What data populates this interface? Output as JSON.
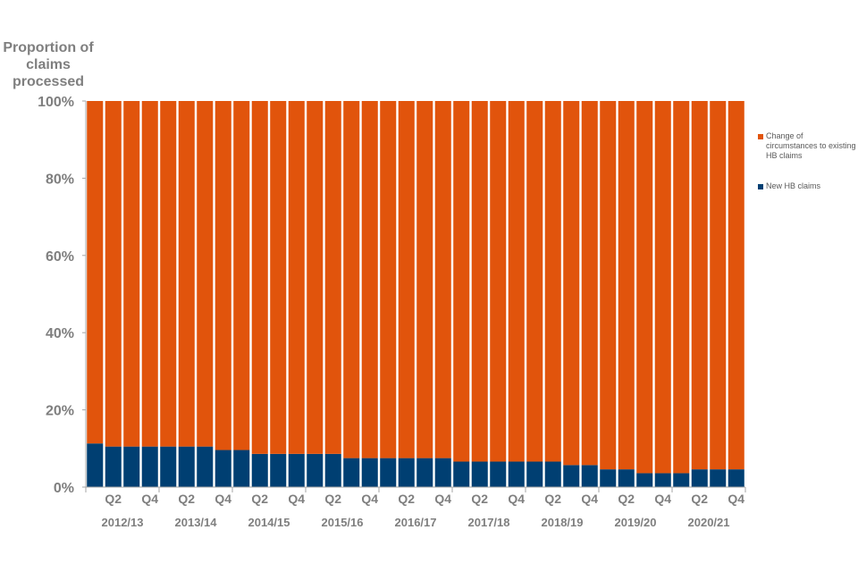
{
  "chart_data": {
    "type": "bar",
    "stacked": true,
    "ylabel": "Proportion of claims processed",
    "ylim": [
      0,
      100
    ],
    "yticks": [
      "0%",
      "20%",
      "40%",
      "60%",
      "80%",
      "100%"
    ],
    "quarter_labels": [
      "Q2",
      "Q4"
    ],
    "years": [
      "2012/13",
      "2013/14",
      "2014/15",
      "2015/16",
      "2016/17",
      "2017/18",
      "2018/19",
      "2019/20",
      "2020/21"
    ],
    "categories": [
      "2012/13 Q1",
      "2012/13 Q2",
      "2012/13 Q3",
      "2012/13 Q4",
      "2013/14 Q1",
      "2013/14 Q2",
      "2013/14 Q3",
      "2013/14 Q4",
      "2014/15 Q1",
      "2014/15 Q2",
      "2014/15 Q3",
      "2014/15 Q4",
      "2015/16 Q1",
      "2015/16 Q2",
      "2015/16 Q3",
      "2015/16 Q4",
      "2016/17 Q1",
      "2016/17 Q2",
      "2016/17 Q3",
      "2016/17 Q4",
      "2017/18 Q1",
      "2017/18 Q2",
      "2017/18 Q3",
      "2017/18 Q4",
      "2018/19 Q1",
      "2018/19 Q2",
      "2018/19 Q3",
      "2018/19 Q4",
      "2019/20 Q1",
      "2019/20 Q2",
      "2019/20 Q3",
      "2019/20 Q4",
      "2020/21 Q1",
      "2020/21 Q2",
      "2020/21 Q3",
      "2020/21 Q4"
    ],
    "series": [
      {
        "name": "New HB claims",
        "color": "#003f72",
        "values": [
          11.3,
          10.5,
          10.5,
          10.5,
          10.5,
          10.5,
          10.5,
          9.6,
          9.6,
          8.6,
          8.6,
          8.6,
          8.6,
          8.6,
          7.5,
          7.5,
          7.5,
          7.5,
          7.5,
          7.5,
          6.6,
          6.6,
          6.6,
          6.6,
          6.6,
          6.6,
          5.7,
          5.7,
          4.6,
          4.6,
          3.6,
          3.6,
          3.6,
          4.6,
          4.6,
          4.6
        ]
      },
      {
        "name": "Change of circumstances to existing HB claims",
        "color": "#e1540c",
        "values": [
          88.7,
          89.5,
          89.5,
          89.5,
          89.5,
          89.5,
          89.5,
          90.4,
          90.4,
          91.4,
          91.4,
          91.4,
          91.4,
          91.4,
          92.5,
          92.5,
          92.5,
          92.5,
          92.5,
          92.5,
          93.4,
          93.4,
          93.4,
          93.4,
          93.4,
          93.4,
          94.3,
          94.3,
          95.4,
          95.4,
          96.4,
          96.4,
          96.4,
          95.4,
          95.4,
          95.4
        ]
      }
    ],
    "legend": [
      "Change of circumstances to existing HB claims",
      "New HB claims"
    ],
    "legend_position": "right",
    "grid": false
  }
}
